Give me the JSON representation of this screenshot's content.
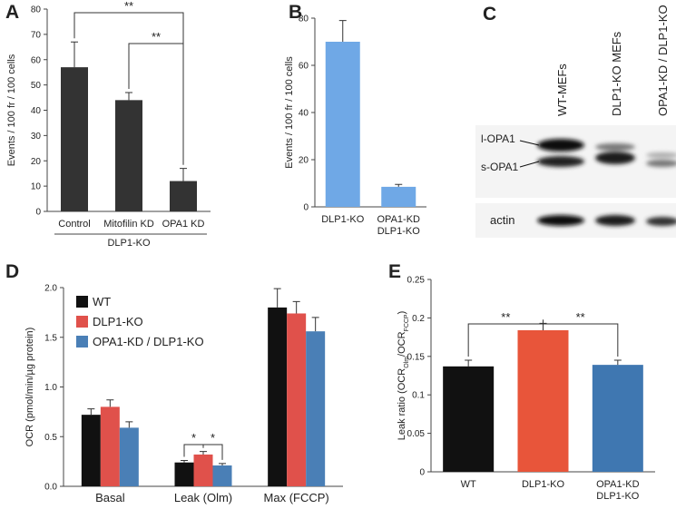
{
  "chart_data": [
    {
      "panel": "A",
      "type": "bar",
      "ylabel": "Events / 100 fr / 100 cells",
      "categories": [
        "Control",
        "Mitofilin KD",
        "OPA1 KD"
      ],
      "group_label": "DLP1-KO",
      "values": [
        57,
        44,
        12
      ],
      "errors": [
        10,
        3,
        5
      ],
      "color": "#333333",
      "ylim": [
        0,
        80
      ],
      "yticks": [
        0,
        10,
        20,
        30,
        40,
        50,
        60,
        70,
        80
      ],
      "annotations": [
        "**",
        "**"
      ]
    },
    {
      "panel": "B",
      "type": "bar",
      "ylabel": "Events / 100 fr / 100 cells",
      "categories": [
        [
          "DLP1-KO"
        ],
        [
          "OPA1-KD",
          "DLP1-KO"
        ]
      ],
      "values": [
        70,
        8.5
      ],
      "errors": [
        9,
        1
      ],
      "color": "#6fa8e6",
      "ylim": [
        0,
        80
      ],
      "yticks": [
        0,
        20,
        40,
        60,
        80
      ]
    },
    {
      "panel": "D",
      "type": "grouped_bar",
      "ylabel": "OCR (pmol/min/µg protein)",
      "categories": [
        "Basal",
        "Leak (Olm)",
        "Max (FCCP)"
      ],
      "series": [
        {
          "name": "WT",
          "color": "#111111",
          "values": [
            0.72,
            0.24,
            1.8
          ],
          "errors": [
            0.06,
            0.02,
            0.19
          ]
        },
        {
          "name": "DLP1-KO",
          "color": "#e0514b",
          "values": [
            0.8,
            0.32,
            1.74
          ],
          "errors": [
            0.07,
            0.03,
            0.12
          ]
        },
        {
          "name": "OPA1-KD / DLP1-KO",
          "color": "#4a7fb6",
          "values": [
            0.59,
            0.21,
            1.56
          ],
          "errors": [
            0.06,
            0.02,
            0.14
          ]
        }
      ],
      "ylim": [
        0,
        2
      ],
      "yticks": [
        {
          "value": 0,
          "label": "0.0"
        },
        0.5,
        {
          "value": 1,
          "label": "1.0"
        },
        1.5,
        {
          "value": 2,
          "label": "2.0"
        }
      ],
      "legend": "top-left",
      "annotations": [
        "*",
        "*"
      ]
    },
    {
      "panel": "E",
      "type": "bar",
      "ylabel": [
        "Leak ratio (OCR",
        "Olm",
        "/OCR",
        "FCCP",
        ")"
      ],
      "categories": [
        [
          "WT"
        ],
        [
          "DLP1-KO"
        ],
        [
          "OPA1-KD",
          "DLP1-KO"
        ]
      ],
      "values": [
        0.137,
        0.184,
        0.139
      ],
      "errors": [
        0.008,
        0.009,
        0.006
      ],
      "colors": [
        "#111111",
        "#e8553a",
        "#3f77b1"
      ],
      "ylim": [
        0,
        0.25
      ],
      "yticks": [
        0,
        0.05,
        0.1,
        0.15,
        0.2,
        0.25
      ],
      "annotations": [
        "**",
        "**"
      ]
    }
  ],
  "blot": {
    "panel": "C",
    "lanes": [
      "WT-MEFs",
      "DLP1-KO MEFs",
      "OPA1-KD / DLP1-KO"
    ],
    "bands": [
      "l-OPA1",
      "s-OPA1"
    ],
    "loading_control": "actin"
  }
}
